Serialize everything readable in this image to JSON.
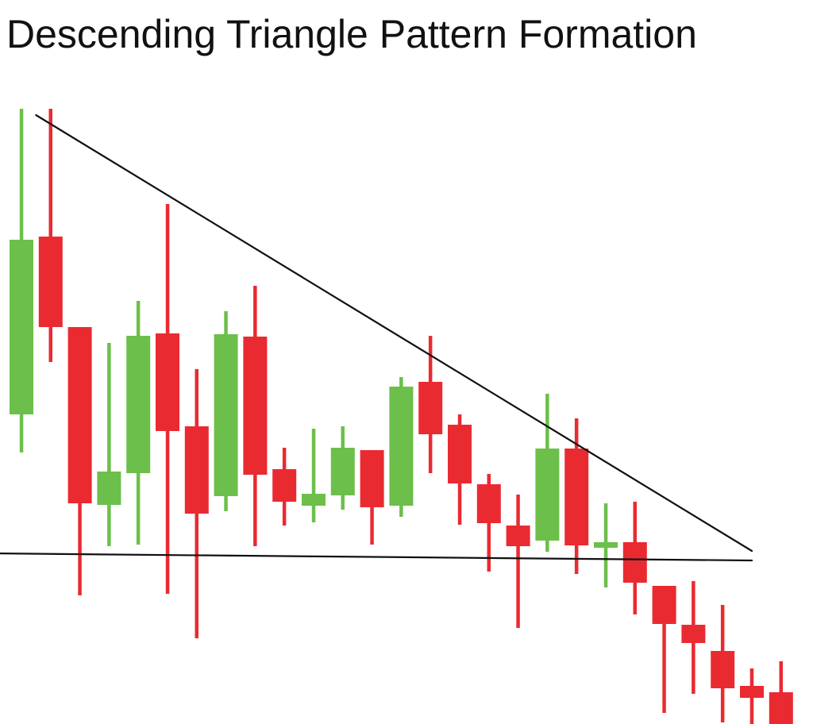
{
  "colors": {
    "up": "#6cbf4a",
    "down": "#ea2a31",
    "line": "#111111",
    "background": "#ffffff"
  },
  "chart_data": {
    "type": "candlestick",
    "title": "Descending Triangle Pattern Formation",
    "xlabel": "",
    "ylabel": "",
    "axes_visible": false,
    "grid": false,
    "ylim": [
      0,
      780
    ],
    "candles": [
      {
        "direction": "up",
        "open": 390,
        "high": 775,
        "low": 342,
        "close": 610
      },
      {
        "direction": "down",
        "open": 614,
        "high": 775,
        "low": 456,
        "close": 500
      },
      {
        "direction": "down",
        "open": 500,
        "high": 500,
        "low": 162,
        "close": 278
      },
      {
        "direction": "up",
        "open": 276,
        "high": 480,
        "low": 224,
        "close": 318
      },
      {
        "direction": "up",
        "open": 316,
        "high": 533,
        "low": 226,
        "close": 489
      },
      {
        "direction": "down",
        "open": 492,
        "high": 655,
        "low": 164,
        "close": 369
      },
      {
        "direction": "down",
        "open": 375,
        "high": 447,
        "low": 108,
        "close": 265
      },
      {
        "direction": "up",
        "open": 287,
        "high": 520,
        "low": 268,
        "close": 491
      },
      {
        "direction": "down",
        "open": 488,
        "high": 552,
        "low": 224,
        "close": 314
      },
      {
        "direction": "down",
        "open": 321,
        "high": 348,
        "low": 250,
        "close": 280
      },
      {
        "direction": "up",
        "open": 275,
        "high": 372,
        "low": 254,
        "close": 290
      },
      {
        "direction": "up",
        "open": 288,
        "high": 375,
        "low": 270,
        "close": 348
      },
      {
        "direction": "down",
        "open": 345,
        "high": 345,
        "low": 226,
        "close": 273
      },
      {
        "direction": "up",
        "open": 275,
        "high": 437,
        "low": 261,
        "close": 425
      },
      {
        "direction": "down",
        "open": 431,
        "high": 489,
        "low": 316,
        "close": 365
      },
      {
        "direction": "down",
        "open": 377,
        "high": 390,
        "low": 251,
        "close": 303
      },
      {
        "direction": "down",
        "open": 302,
        "high": 315,
        "low": 192,
        "close": 253
      },
      {
        "direction": "down",
        "open": 250,
        "high": 289,
        "low": 121,
        "close": 224
      },
      {
        "direction": "up",
        "open": 231,
        "high": 416,
        "low": 217,
        "close": 347
      },
      {
        "direction": "down",
        "open": 347,
        "high": 385,
        "low": 189,
        "close": 225
      },
      {
        "direction": "up",
        "open": 222,
        "high": 278,
        "low": 172,
        "close": 229
      },
      {
        "direction": "down",
        "open": 229,
        "high": 280,
        "low": 138,
        "close": 178
      },
      {
        "direction": "down",
        "open": 174,
        "high": 174,
        "low": 14,
        "close": 126
      },
      {
        "direction": "down",
        "open": 125,
        "high": 180,
        "low": 38,
        "close": 102
      },
      {
        "direction": "down",
        "open": 92,
        "high": 150,
        "low": 2,
        "close": 45
      },
      {
        "direction": "down",
        "open": 48,
        "high": 70,
        "low": 0,
        "close": 33
      },
      {
        "direction": "down",
        "open": 40,
        "high": 79,
        "low": 0,
        "close": 0
      }
    ],
    "trendlines": [
      {
        "kind": "descending-resistance",
        "x_start": 0.5,
        "y_start": 767,
        "x_end": 25,
        "y_end": 218
      },
      {
        "kind": "horizontal-support",
        "x_start": -1.2,
        "y_start": 215,
        "x_end": 25,
        "y_end": 206
      }
    ]
  }
}
